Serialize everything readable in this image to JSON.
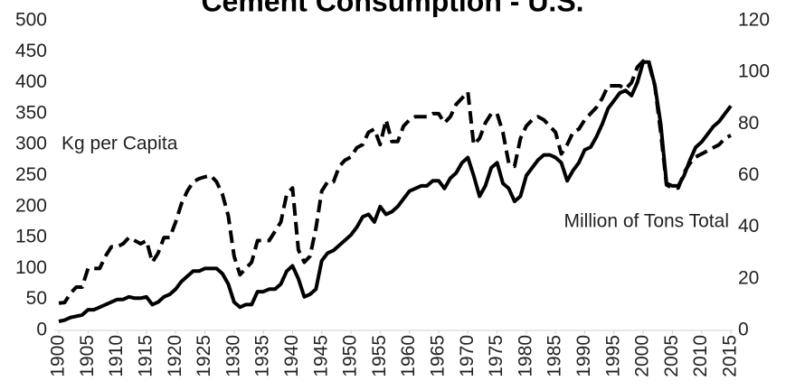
{
  "chart_data": {
    "type": "line",
    "title": "Cement Consumption - U.S.",
    "xlim": [
      1900,
      2015
    ],
    "xticks": [
      1900,
      1905,
      1910,
      1915,
      1920,
      1925,
      1930,
      1935,
      1940,
      1945,
      1950,
      1955,
      1960,
      1965,
      1970,
      1975,
      1980,
      1985,
      1990,
      1995,
      2000,
      2005,
      2010,
      2015
    ],
    "ylim": [
      0,
      500
    ],
    "yticks": [
      0,
      50,
      100,
      150,
      200,
      250,
      300,
      350,
      400,
      450,
      500
    ],
    "y2lim": [
      0,
      120
    ],
    "y2ticks": [
      0,
      20,
      40,
      60,
      80,
      100,
      120
    ],
    "grid": false,
    "x": [
      1900,
      1901,
      1902,
      1903,
      1904,
      1905,
      1906,
      1907,
      1908,
      1909,
      1910,
      1911,
      1912,
      1913,
      1914,
      1915,
      1916,
      1917,
      1918,
      1919,
      1920,
      1921,
      1922,
      1923,
      1924,
      1925,
      1926,
      1927,
      1928,
      1929,
      1930,
      1931,
      1932,
      1933,
      1934,
      1935,
      1936,
      1937,
      1938,
      1939,
      1940,
      1941,
      1942,
      1943,
      1944,
      1945,
      1946,
      1947,
      1948,
      1949,
      1950,
      1951,
      1952,
      1953,
      1954,
      1955,
      1956,
      1957,
      1958,
      1959,
      1960,
      1961,
      1962,
      1963,
      1964,
      1965,
      1966,
      1967,
      1968,
      1969,
      1970,
      1971,
      1972,
      1973,
      1974,
      1975,
      1976,
      1977,
      1978,
      1979,
      1980,
      1981,
      1982,
      1983,
      1984,
      1985,
      1986,
      1987,
      1988,
      1989,
      1990,
      1991,
      1992,
      1993,
      1994,
      1995,
      1996,
      1997,
      1998,
      1999,
      2000,
      2001,
      2002,
      2003,
      2004,
      2005,
      2006,
      2007,
      2008,
      2009,
      2010,
      2011,
      2012,
      2013,
      2014,
      2015
    ],
    "series": [
      {
        "name": "Kg per Capita",
        "color": "#000000",
        "dashed": true,
        "axis": "y",
        "values": [
          44,
          45,
          60,
          70,
          70,
          100,
          100,
          100,
          120,
          135,
          135,
          140,
          150,
          145,
          140,
          145,
          110,
          125,
          150,
          150,
          175,
          205,
          225,
          240,
          245,
          248,
          250,
          240,
          220,
          185,
          120,
          90,
          100,
          110,
          145,
          145,
          145,
          160,
          175,
          220,
          230,
          130,
          110,
          120,
          165,
          225,
          240,
          240,
          265,
          275,
          280,
          295,
          300,
          320,
          325,
          300,
          340,
          305,
          305,
          330,
          340,
          345,
          345,
          345,
          350,
          350,
          335,
          345,
          365,
          375,
          385,
          300,
          310,
          335,
          350,
          350,
          320,
          270,
          265,
          310,
          330,
          340,
          345,
          340,
          330,
          320,
          285,
          300,
          320,
          325,
          340,
          350,
          360,
          375,
          395,
          395,
          395,
          390,
          400,
          425,
          435,
          430,
          395,
          320,
          235,
          230,
          230,
          255,
          270,
          280,
          285,
          290,
          295,
          300,
          310,
          315
        ]
      },
      {
        "name": "Million of Tons Total",
        "color": "#000000",
        "dashed": false,
        "axis": "y2",
        "values": [
          3.5,
          4,
          5,
          5.5,
          6,
          8,
          8,
          9,
          10,
          11,
          12,
          12,
          13,
          12.5,
          12.5,
          13,
          10,
          11,
          13,
          14,
          16,
          19,
          21,
          23,
          23,
          24,
          24,
          24,
          22,
          18,
          11,
          9,
          10,
          10,
          15,
          15,
          16,
          16,
          18,
          23,
          25,
          20,
          13,
          14,
          16,
          27,
          30,
          31,
          33,
          35,
          37,
          40,
          44,
          45,
          42,
          48,
          45,
          46,
          48,
          51,
          54,
          55,
          56,
          56,
          58,
          58,
          55,
          59,
          61,
          65,
          67,
          60,
          52,
          56,
          63,
          65,
          57,
          55,
          50,
          52,
          60,
          63,
          66,
          68,
          68,
          67,
          65,
          58,
          62,
          65,
          70,
          71,
          75,
          80,
          86,
          89,
          92,
          93,
          91,
          96,
          104,
          104,
          95,
          80,
          57,
          56,
          56,
          60,
          66,
          71,
          73,
          76,
          79,
          81,
          84,
          87
        ]
      }
    ]
  }
}
